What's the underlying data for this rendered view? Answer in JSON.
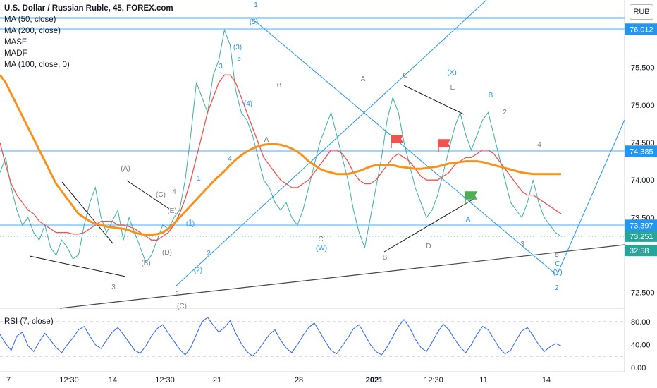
{
  "header": {
    "title": "U.S. Dollar / Russian Ruble, 45, FOREX.com",
    "indicators": [
      "MA (50, close)",
      "MA (200, close)",
      "MASF",
      "MADF",
      "MA (100, close, 0)"
    ],
    "currency_button": "RUB"
  },
  "chart_data": {
    "type": "line",
    "symbol": "USDRUB",
    "price_axis": {
      "ticks": [
        "75.500",
        "75.000",
        "74.500",
        "74.000",
        "73.500",
        "72.500"
      ],
      "tick_values": [
        75.5,
        75.0,
        74.5,
        74.0,
        73.5,
        72.5
      ],
      "ylim": [
        72.3,
        76.4
      ]
    },
    "price_labels": [
      {
        "text": "76.012",
        "value": 76.012,
        "color": "#2196f3"
      },
      {
        "text": "74.385",
        "value": 74.385,
        "color": "#2196f3"
      },
      {
        "text": "73.397",
        "value": 73.397,
        "color": "#2196f3"
      },
      {
        "text": "73.251",
        "value": 73.251,
        "color": "#26a69a"
      },
      {
        "text": "32:58",
        "value": 73.06,
        "color": "#26a69a"
      }
    ],
    "x_axis": {
      "ticks": [
        "7",
        "12:30",
        "14",
        "12:30",
        "21",
        "28",
        "2021",
        "12:30",
        "11",
        "14"
      ]
    },
    "horizontal_levels": [
      76.16,
      76.012,
      74.385,
      73.397
    ],
    "series": [
      {
        "name": "Price",
        "color": "#26a69a",
        "values": [
          74.1,
          74.3,
          73.9,
          73.6,
          73.4,
          73.5,
          73.3,
          73.2,
          73.4,
          73.1,
          73.0,
          73.2,
          73.1,
          72.95,
          73.0,
          73.4,
          73.7,
          73.9,
          73.5,
          73.3,
          73.45,
          73.6,
          73.2,
          73.5,
          73.3,
          73.1,
          72.9,
          73.0,
          73.2,
          73.4,
          73.35,
          73.5,
          73.6,
          74.0,
          74.6,
          75.3,
          75.1,
          74.9,
          75.4,
          75.6,
          76.0,
          75.8,
          75.2,
          74.9,
          74.8,
          74.6,
          74.3,
          74.0,
          73.9,
          73.7,
          73.6,
          73.7,
          73.5,
          73.4,
          73.6,
          73.9,
          74.2,
          74.5,
          74.7,
          74.9,
          74.6,
          74.3,
          74.0,
          73.6,
          73.3,
          73.1,
          73.5,
          73.9,
          74.3,
          74.8,
          75.1,
          74.9,
          74.5,
          74.2,
          73.9,
          73.7,
          73.5,
          73.6,
          73.8,
          74.1,
          74.4,
          74.7,
          74.9,
          74.6,
          74.4,
          74.6,
          74.8,
          74.9,
          74.6,
          74.3,
          74.0,
          73.7,
          73.6,
          73.5,
          73.7,
          74.0,
          73.7,
          73.5,
          73.4,
          73.3,
          73.25
        ]
      },
      {
        "name": "MA (50, close)",
        "color": "#ef5350",
        "values": [
          74.5,
          74.2,
          73.95,
          73.8,
          73.7,
          73.6,
          73.55,
          73.45,
          73.4,
          73.35,
          73.3,
          73.3,
          73.3,
          73.28,
          73.28,
          73.3,
          73.35,
          73.4,
          73.45,
          73.45,
          73.45,
          73.4,
          73.4,
          73.38,
          73.35,
          73.3,
          73.25,
          73.2,
          73.2,
          73.25,
          73.3,
          73.4,
          73.55,
          73.75,
          74.0,
          74.3,
          74.6,
          74.9,
          75.1,
          75.3,
          75.4,
          75.4,
          75.3,
          75.1,
          74.9,
          74.7,
          74.5,
          74.3,
          74.2,
          74.1,
          74.0,
          73.95,
          73.9,
          73.9,
          73.95,
          74.0,
          74.1,
          74.2,
          74.3,
          74.4,
          74.4,
          74.35,
          74.25,
          74.1,
          74.0,
          73.95,
          73.95,
          74.0,
          74.1,
          74.2,
          74.3,
          74.35,
          74.3,
          74.25,
          74.15,
          74.05,
          74.0,
          74.0,
          74.0,
          74.05,
          74.1,
          74.2,
          74.25,
          74.3,
          74.3,
          74.35,
          74.4,
          74.4,
          74.35,
          74.25,
          74.15,
          74.05,
          73.95,
          73.85,
          73.8,
          73.8,
          73.75,
          73.7,
          73.65,
          73.6,
          73.55
        ]
      },
      {
        "name": "MA (200, close)",
        "color": "#f7931a",
        "values": [
          75.4,
          75.3,
          75.15,
          75.0,
          74.85,
          74.7,
          74.55,
          74.4,
          74.25,
          74.1,
          73.95,
          73.85,
          73.75,
          73.65,
          73.55,
          73.5,
          73.45,
          73.42,
          73.4,
          73.38,
          73.37,
          73.36,
          73.35,
          73.33,
          73.3,
          73.28,
          73.27,
          73.27,
          73.28,
          73.3,
          73.35,
          73.42,
          73.5,
          73.58,
          73.66,
          73.74,
          73.82,
          73.9,
          73.98,
          74.05,
          74.12,
          74.2,
          74.27,
          74.33,
          74.38,
          74.42,
          74.45,
          74.47,
          74.48,
          74.48,
          74.47,
          74.45,
          74.42,
          74.38,
          74.32,
          74.25,
          74.2,
          74.15,
          74.12,
          74.1,
          74.08,
          74.08,
          74.08,
          74.1,
          74.12,
          74.15,
          74.18,
          74.2,
          74.2,
          74.2,
          74.2,
          74.18,
          74.17,
          74.16,
          74.15,
          74.15,
          74.16,
          74.17,
          74.18,
          74.2,
          74.22,
          74.23,
          74.24,
          74.25,
          74.25,
          74.25,
          74.24,
          74.22,
          74.2,
          74.18,
          74.16,
          74.14,
          74.12,
          74.1,
          74.09,
          74.08,
          74.08,
          74.08,
          74.08,
          74.08,
          74.08
        ]
      }
    ],
    "wave_labels": {
      "blue": [
        "1",
        "(5)",
        "(3)",
        "3",
        "5",
        "(4)",
        "1",
        "4",
        "(1)",
        "2",
        "(2)",
        "(W)",
        "(X)",
        "B",
        "A",
        "C",
        "(Y)",
        "2",
        "1"
      ],
      "gray": [
        "(A)",
        "(C)",
        "4",
        "(E)",
        "(D)",
        "(B)",
        "3",
        "5",
        "(C)",
        "A",
        "B",
        "C",
        "A",
        "B",
        "D",
        "E",
        "C",
        "2",
        "4",
        "3",
        "5"
      ]
    },
    "rsi": {
      "title": "RSI (7, close)",
      "ticks": [
        "80.00",
        "40.00",
        "0.00"
      ],
      "tick_values": [
        80,
        40,
        0
      ],
      "ylim": [
        -5,
        100
      ],
      "upper": 80,
      "lower": 20,
      "color": "#2962ff",
      "values": [
        58,
        42,
        30,
        55,
        62,
        38,
        28,
        45,
        60,
        48,
        35,
        26,
        40,
        52,
        66,
        72,
        55,
        40,
        33,
        48,
        62,
        70,
        58,
        44,
        30,
        25,
        38,
        55,
        68,
        75,
        60,
        46,
        32,
        22,
        35,
        58,
        80,
        88,
        74,
        62,
        70,
        82,
        60,
        42,
        28,
        20,
        30,
        44,
        58,
        66,
        48,
        34,
        26,
        40,
        56,
        70,
        78,
        62,
        45,
        30,
        24,
        38,
        52,
        68,
        75,
        58,
        40,
        28,
        22,
        36,
        54,
        72,
        84,
        70,
        50,
        35,
        28,
        44,
        62,
        76,
        66,
        50,
        36,
        26,
        40,
        58,
        72,
        66,
        50,
        34,
        24,
        30,
        48,
        64,
        70,
        56,
        40,
        28,
        36,
        42,
        38
      ]
    }
  }
}
